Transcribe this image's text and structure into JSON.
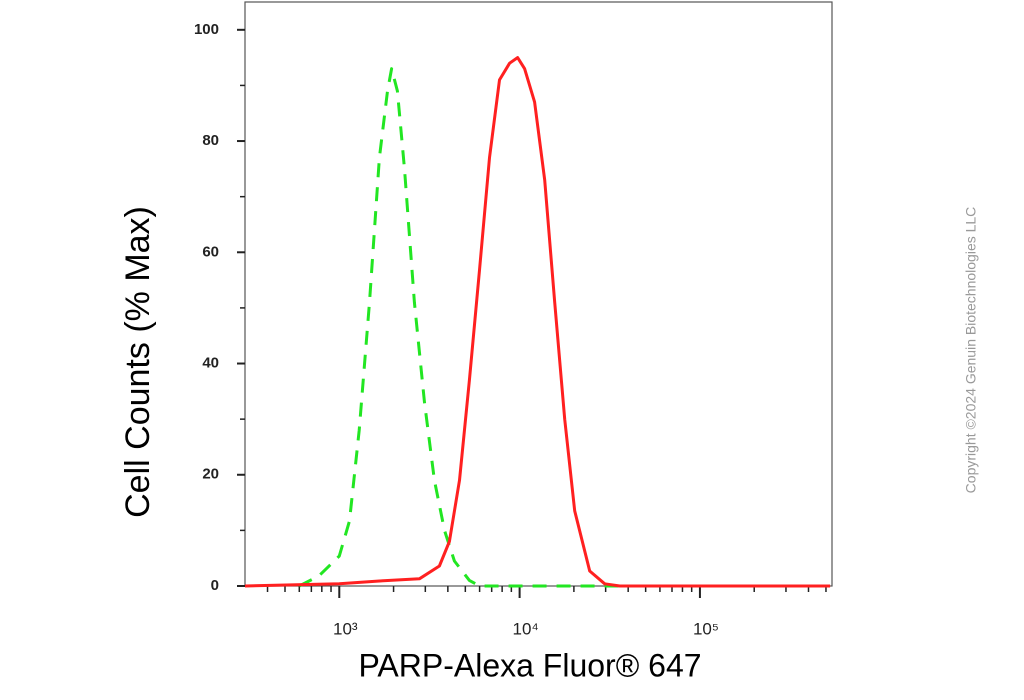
{
  "chart_data": {
    "type": "line",
    "xlabel": "PARP-Alexa Fluor® 647",
    "ylabel": "Cell Counts (% Max)",
    "watermark": "Copyright ©2024 Genuin Biotechnologies LLC",
    "xscale": "log",
    "xlim": [
      300,
      540000
    ],
    "ylim": [
      0,
      105
    ],
    "xticks": [
      {
        "value": 1000,
        "label": "10³"
      },
      {
        "value": 10000,
        "label": "10⁴"
      },
      {
        "value": 100000,
        "label": "10⁵"
      }
    ],
    "xticks_minor": [
      400,
      500,
      600,
      700,
      800,
      900,
      2000,
      3000,
      4000,
      5000,
      6000,
      7000,
      8000,
      9000,
      20000,
      30000,
      40000,
      50000,
      60000,
      70000,
      80000,
      90000,
      200000,
      300000,
      400000,
      500000
    ],
    "yticks": [
      0,
      20,
      40,
      60,
      80,
      100
    ],
    "yticks_minor": [
      10,
      30,
      50,
      70,
      90
    ],
    "series": [
      {
        "color": "#22e622",
        "line_style": "dashed",
        "x": [
          600,
          770,
          1000,
          1140,
          1290,
          1470,
          1670,
          1850,
          1950,
          2100,
          2300,
          2610,
          2970,
          3370,
          3830,
          4350,
          5270,
          6000,
          14700,
          100000,
          525000
        ],
        "values": [
          0,
          1.8,
          5.4,
          11.7,
          28,
          51,
          77,
          89,
          93,
          89,
          75,
          51,
          33,
          19,
          10,
          4.5,
          1,
          0,
          0,
          0,
          0
        ]
      },
      {
        "color": "#ff2020",
        "line_style": "solid",
        "x": [
          300,
          1000,
          1670,
          2780,
          3590,
          4080,
          4640,
          5270,
          6000,
          6810,
          7740,
          8800,
          9750,
          10660,
          12110,
          13770,
          15650,
          17780,
          20200,
          24480,
          29650,
          35940,
          527000
        ],
        "values": [
          0,
          0.4,
          0.9,
          1.3,
          3.6,
          8,
          19,
          37,
          57,
          77,
          91,
          94,
          95,
          93,
          87,
          73,
          51,
          30,
          13.5,
          2.7,
          0.4,
          0,
          0
        ]
      }
    ]
  }
}
